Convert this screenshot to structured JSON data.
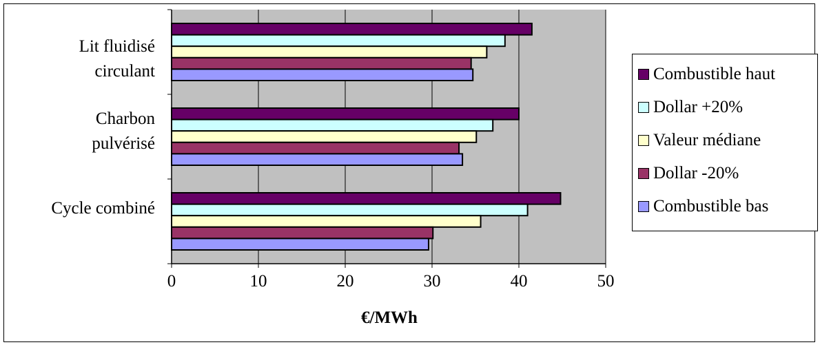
{
  "chart_data": {
    "type": "bar",
    "orientation": "horizontal",
    "categories": [
      "Lit fluidisé circulant",
      "Charbon pulvérisé",
      "Cycle combiné"
    ],
    "category_lines": [
      [
        "Lit fluidisé",
        "circulant"
      ],
      [
        "Charbon",
        "pulvérisé"
      ],
      [
        "Cycle combiné"
      ]
    ],
    "series": [
      {
        "name": "Combustible haut",
        "color": "#660066",
        "values": [
          41.5,
          40.0,
          44.8
        ]
      },
      {
        "name": "Dollar +20%",
        "color": "#CCFFFF",
        "values": [
          38.4,
          37.0,
          41.0
        ]
      },
      {
        "name": "Valeur médiane",
        "color": "#FFFFCC",
        "values": [
          36.3,
          35.1,
          35.6
        ]
      },
      {
        "name": "Dollar -20%",
        "color": "#993366",
        "values": [
          34.5,
          33.1,
          30.1
        ]
      },
      {
        "name": "Combustible bas",
        "color": "#9999FF",
        "values": [
          34.7,
          33.5,
          29.6
        ]
      }
    ],
    "xlim": [
      0,
      50
    ],
    "xticks": [
      0,
      10,
      20,
      30,
      40,
      50
    ],
    "xlabel": "€/MWh",
    "ylabel": "",
    "title": "",
    "grid": true,
    "plot_background": "#C0C0C0",
    "legend_position": "right"
  }
}
